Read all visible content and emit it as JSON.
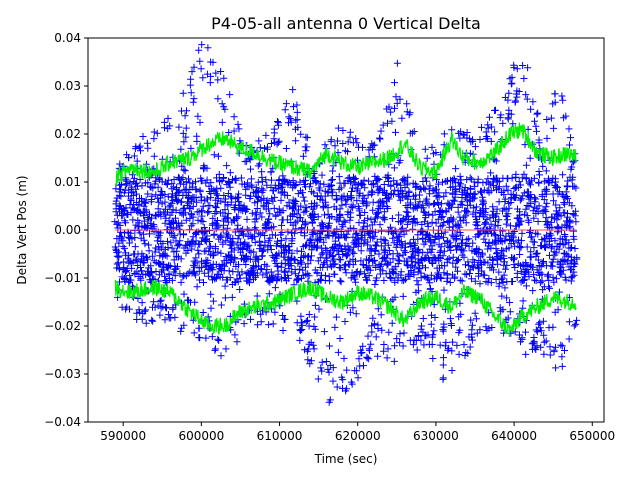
{
  "chart_data": {
    "type": "scatter",
    "title": "P4-05-all antenna 0 Vertical Delta",
    "xlabel": "Time (sec)",
    "ylabel": "Delta Vert Pos (m)",
    "xlim": [
      585500,
      651500
    ],
    "ylim": [
      -0.04,
      0.04
    ],
    "x_ticks": [
      590000,
      600000,
      610000,
      620000,
      630000,
      640000,
      650000
    ],
    "x_tick_labels": [
      "590000",
      "600000",
      "610000",
      "620000",
      "630000",
      "640000",
      "650000"
    ],
    "y_ticks": [
      -0.04,
      -0.03,
      -0.02,
      -0.01,
      0.0,
      0.01,
      0.02,
      0.03,
      0.04
    ],
    "y_tick_labels": [
      "−0.04",
      "−0.03",
      "−0.02",
      "−0.01",
      "0.00",
      "0.01",
      "0.02",
      "0.03",
      "0.04"
    ],
    "grid": false,
    "series": [
      {
        "style": "plus-markers",
        "color": "#0000ff",
        "x_range": [
          589000,
          648000
        ],
        "envelope_x": [
          589000,
          593000,
          596000,
          598000,
          600500,
          603000,
          606000,
          609000,
          612000,
          614500,
          617000,
          620000,
          622000,
          625000,
          628000,
          631000,
          632500,
          635000,
          637000,
          639000,
          641000,
          643500,
          646000,
          648000
        ],
        "envelope_upper": [
          0.013,
          0.021,
          0.024,
          0.032,
          0.04,
          0.033,
          0.017,
          0.021,
          0.031,
          0.012,
          0.023,
          0.02,
          0.018,
          0.035,
          0.016,
          0.02,
          0.024,
          0.019,
          0.025,
          0.03,
          0.04,
          0.02,
          0.033,
          0.015
        ],
        "envelope_lower": [
          -0.016,
          -0.02,
          -0.019,
          -0.022,
          -0.023,
          -0.027,
          -0.02,
          -0.02,
          -0.022,
          -0.032,
          -0.038,
          -0.031,
          -0.026,
          -0.028,
          -0.026,
          -0.032,
          -0.029,
          -0.024,
          -0.021,
          -0.022,
          -0.026,
          -0.028,
          -0.031,
          -0.02
        ]
      },
      {
        "style": "line",
        "color": "#00ee00",
        "x": [
          589000,
          591000,
          594000,
          596000,
          598500,
          601000,
          603000,
          605000,
          607000,
          609500,
          612000,
          614000,
          616000,
          618000,
          620000,
          622000,
          624000,
          626000,
          628000,
          630000,
          632000,
          633500,
          635500,
          637500,
          639500,
          641000,
          643000,
          645000,
          647000,
          648000
        ],
        "upper_y": [
          0.011,
          0.013,
          0.012,
          0.014,
          0.015,
          0.018,
          0.019,
          0.017,
          0.016,
          0.014,
          0.013,
          0.012,
          0.016,
          0.014,
          0.013,
          0.014,
          0.015,
          0.018,
          0.013,
          0.012,
          0.019,
          0.015,
          0.014,
          0.016,
          0.02,
          0.021,
          0.016,
          0.015,
          0.016,
          0.015
        ],
        "lower_y": [
          -0.012,
          -0.013,
          -0.012,
          -0.013,
          -0.017,
          -0.02,
          -0.02,
          -0.017,
          -0.016,
          -0.015,
          -0.013,
          -0.012,
          -0.014,
          -0.015,
          -0.013,
          -0.014,
          -0.016,
          -0.019,
          -0.015,
          -0.014,
          -0.016,
          -0.013,
          -0.014,
          -0.018,
          -0.021,
          -0.018,
          -0.016,
          -0.014,
          -0.015,
          -0.015
        ]
      },
      {
        "style": "line",
        "color": "#ff4444",
        "x": [
          589000,
          648000
        ],
        "y": [
          0.0,
          0.0
        ]
      }
    ]
  }
}
